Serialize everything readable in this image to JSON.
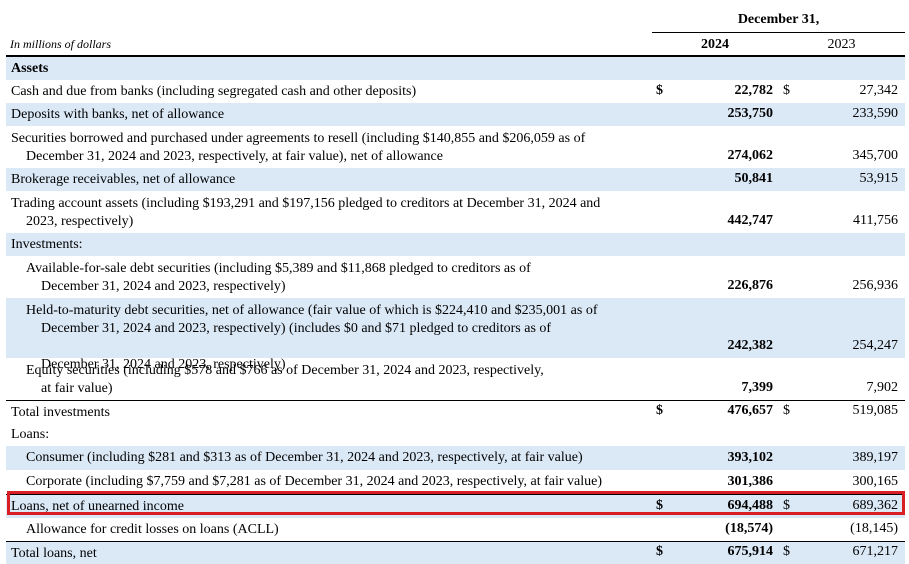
{
  "header": {
    "period": "December 31,",
    "caption": "In millions of dollars",
    "year_current": "2024",
    "year_prior": "2023"
  },
  "rows": [
    {
      "lines": [
        "Assets"
      ],
      "bold": true
    },
    {
      "lines": [
        "Cash and due from banks (including segregated cash and other deposits)"
      ],
      "dollar": "$",
      "v2024": "22,782",
      "dollar2": "$",
      "v2023": "27,342"
    },
    {
      "lines": [
        "Deposits with banks, net of allowance"
      ],
      "v2024": "253,750",
      "v2023": "233,590"
    },
    {
      "lines": [
        "Securities borrowed and purchased under agreements to resell (including $140,855 and $206,059 as of",
        "December 31, 2024 and 2023, respectively, at fair value), net of allowance"
      ],
      "v2024": "274,062",
      "v2023": "345,700"
    },
    {
      "lines": [
        "Brokerage receivables, net of allowance"
      ],
      "v2024": "50,841",
      "v2023": "53,915"
    },
    {
      "lines": [
        "Trading account assets (including $193,291 and $197,156 pledged to creditors at December 31, 2024 and",
        "2023, respectively)"
      ],
      "v2024": "442,747",
      "v2023": "411,756"
    },
    {
      "lines": [
        "Investments:"
      ]
    },
    {
      "lines": [
        "Available-for-sale debt securities (including $5,389 and $11,868 pledged to creditors as of",
        "December 31, 2024 and 2023, respectively)"
      ],
      "indent": true,
      "v2024": "226,876",
      "v2023": "256,936"
    },
    {
      "lines": [
        "Held-to-maturity debt securities, net of allowance (fair value of which is $224,410 and $235,001 as of",
        "December 31, 2024 and 2023, respectively) (includes $0 and $71 pledged to creditors as of",
        "December 31, 2024 and 2023, respectively)"
      ],
      "indent": true,
      "v2024": "242,382",
      "v2023": "254,247"
    },
    {
      "lines": [
        "Equity securities (including $578 and $766 as of December 31, 2024 and 2023, respectively,",
        "at fair value)"
      ],
      "indent": true,
      "v2024": "7,399",
      "v2023": "7,902"
    },
    {
      "lines": [
        "Total investments"
      ],
      "dollar": "$",
      "v2024": "476,657",
      "dollar2": "$",
      "v2023": "519,085"
    },
    {
      "lines": [
        "Loans:"
      ]
    },
    {
      "lines": [
        "Consumer (including $281 and $313 as of December 31, 2024 and 2023, respectively, at fair value)"
      ],
      "indent": true,
      "v2024": "393,102",
      "v2023": "389,197"
    },
    {
      "lines": [
        "Corporate (including $7,759 and $7,281 as of December 31, 2024 and 2023, respectively, at fair value)"
      ],
      "indent": true,
      "v2024": "301,386",
      "v2023": "300,165"
    },
    {
      "lines": [
        "Loans, net of unearned income"
      ],
      "dollar": "$",
      "v2024": "694,488",
      "dollar2": "$",
      "v2023": "689,362"
    },
    {
      "lines": [
        "Allowance for credit losses on loans (ACLL)"
      ],
      "indent": true,
      "v2024": "(18,574)",
      "v2023": "(18,145)"
    },
    {
      "lines": [
        "Total loans, net"
      ],
      "dollar": "$",
      "v2024": "675,914",
      "dollar2": "$",
      "v2023": "671,217"
    }
  ]
}
